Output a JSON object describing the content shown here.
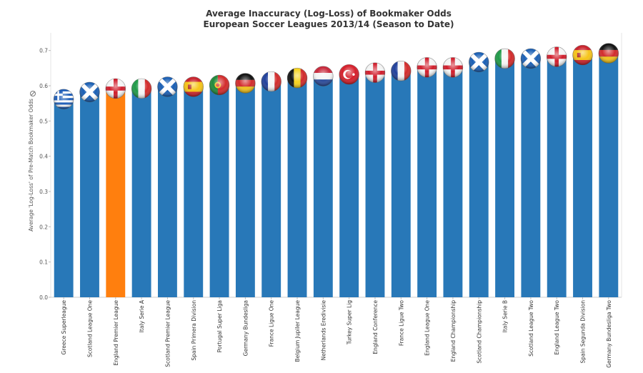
{
  "chart_data": {
    "type": "bar",
    "title": "Average Inaccuracy (Log-Loss) of Bookmaker Odds",
    "subtitle": "European Soccer Leagues 2013/14 (Season to Date)",
    "ylabel": "Average 'Log-Loss' of Pre-Match Bookmaker Odds",
    "xlabel": "",
    "ylim": [
      0,
      0.75
    ],
    "yticks": [
      "0.0",
      "0.1",
      "0.2",
      "0.3",
      "0.4",
      "0.5",
      "0.6",
      "0.7"
    ],
    "grid": false,
    "bar_color": "#2878b8",
    "highlight_color": "#ff7f0e",
    "categories": [
      "Greece Superleague",
      "Scotland League One",
      "England Premier League",
      "Italy Serie A",
      "Scotland Premier League",
      "Spain Primera Division",
      "Portugal Super Liga",
      "Germany Bundesliga",
      "France Ligue One",
      "Belgium Jupiler League",
      "Netherlands Eredivisie",
      "Turkey Super Lig",
      "England Conference",
      "France Ligue Two",
      "England League One",
      "England Championship",
      "Scotland Championship",
      "Italy Serie B",
      "Scotland League Two",
      "England League Two",
      "Spain Segunda Division",
      "Germany Bundesliga Two"
    ],
    "values": [
      0.56,
      0.58,
      0.59,
      0.59,
      0.595,
      0.595,
      0.6,
      0.605,
      0.61,
      0.62,
      0.625,
      0.63,
      0.635,
      0.64,
      0.65,
      0.65,
      0.665,
      0.675,
      0.675,
      0.68,
      0.685,
      0.69
    ],
    "highlighted": [
      "England Premier League"
    ],
    "flag_icons": [
      "greece-flag-icon",
      "scotland-flag-icon",
      "england-flag-icon",
      "italy-flag-icon",
      "scotland-flag-icon",
      "spain-flag-icon",
      "portugal-flag-icon",
      "germany-flag-icon",
      "france-flag-icon",
      "belgium-flag-icon",
      "netherlands-flag-icon",
      "turkey-flag-icon",
      "england-flag-icon",
      "france-flag-icon",
      "england-flag-icon",
      "england-flag-icon",
      "scotland-flag-icon",
      "italy-flag-icon",
      "scotland-flag-icon",
      "england-flag-icon",
      "spain-flag-icon",
      "germany-flag-icon"
    ]
  }
}
